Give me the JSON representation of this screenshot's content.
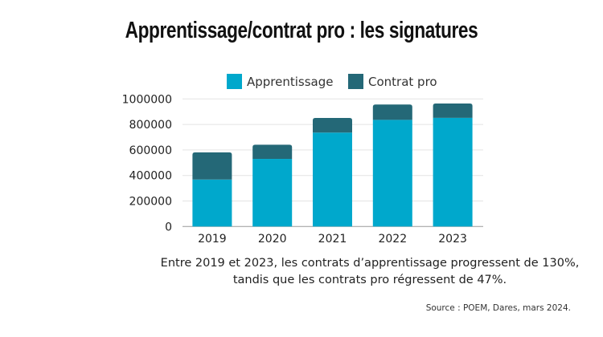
{
  "chart_data": {
    "type": "bar",
    "stacked": true,
    "title": "Apprentissage/contrat pro : les signatures",
    "categories": [
      "2019",
      "2020",
      "2021",
      "2022",
      "2023"
    ],
    "series": [
      {
        "name": "Apprentissage",
        "color": "#00A8CC",
        "values": [
          368000,
          530000,
          736000,
          836000,
          852000
        ]
      },
      {
        "name": "Contrat pro",
        "color": "#246877",
        "values": [
          213000,
          111000,
          115000,
          120000,
          112000
        ]
      }
    ],
    "xlabel": "",
    "ylabel": "",
    "ylim": [
      0,
      1000000
    ],
    "yticks": [
      "0",
      "200000",
      "400000",
      "600000",
      "800000",
      "1000000"
    ],
    "ytick_values": [
      0,
      200000,
      400000,
      600000,
      800000,
      1000000
    ],
    "grid": true,
    "legend": "top-center"
  },
  "caption": {
    "line1": "Entre 2019 et 2023, les contrats d’apprentissage progressent de 130%,",
    "line2": "tandis que les contrats pro régressent de 47%."
  },
  "source": "Source : POEM, Dares,  mars 2024."
}
